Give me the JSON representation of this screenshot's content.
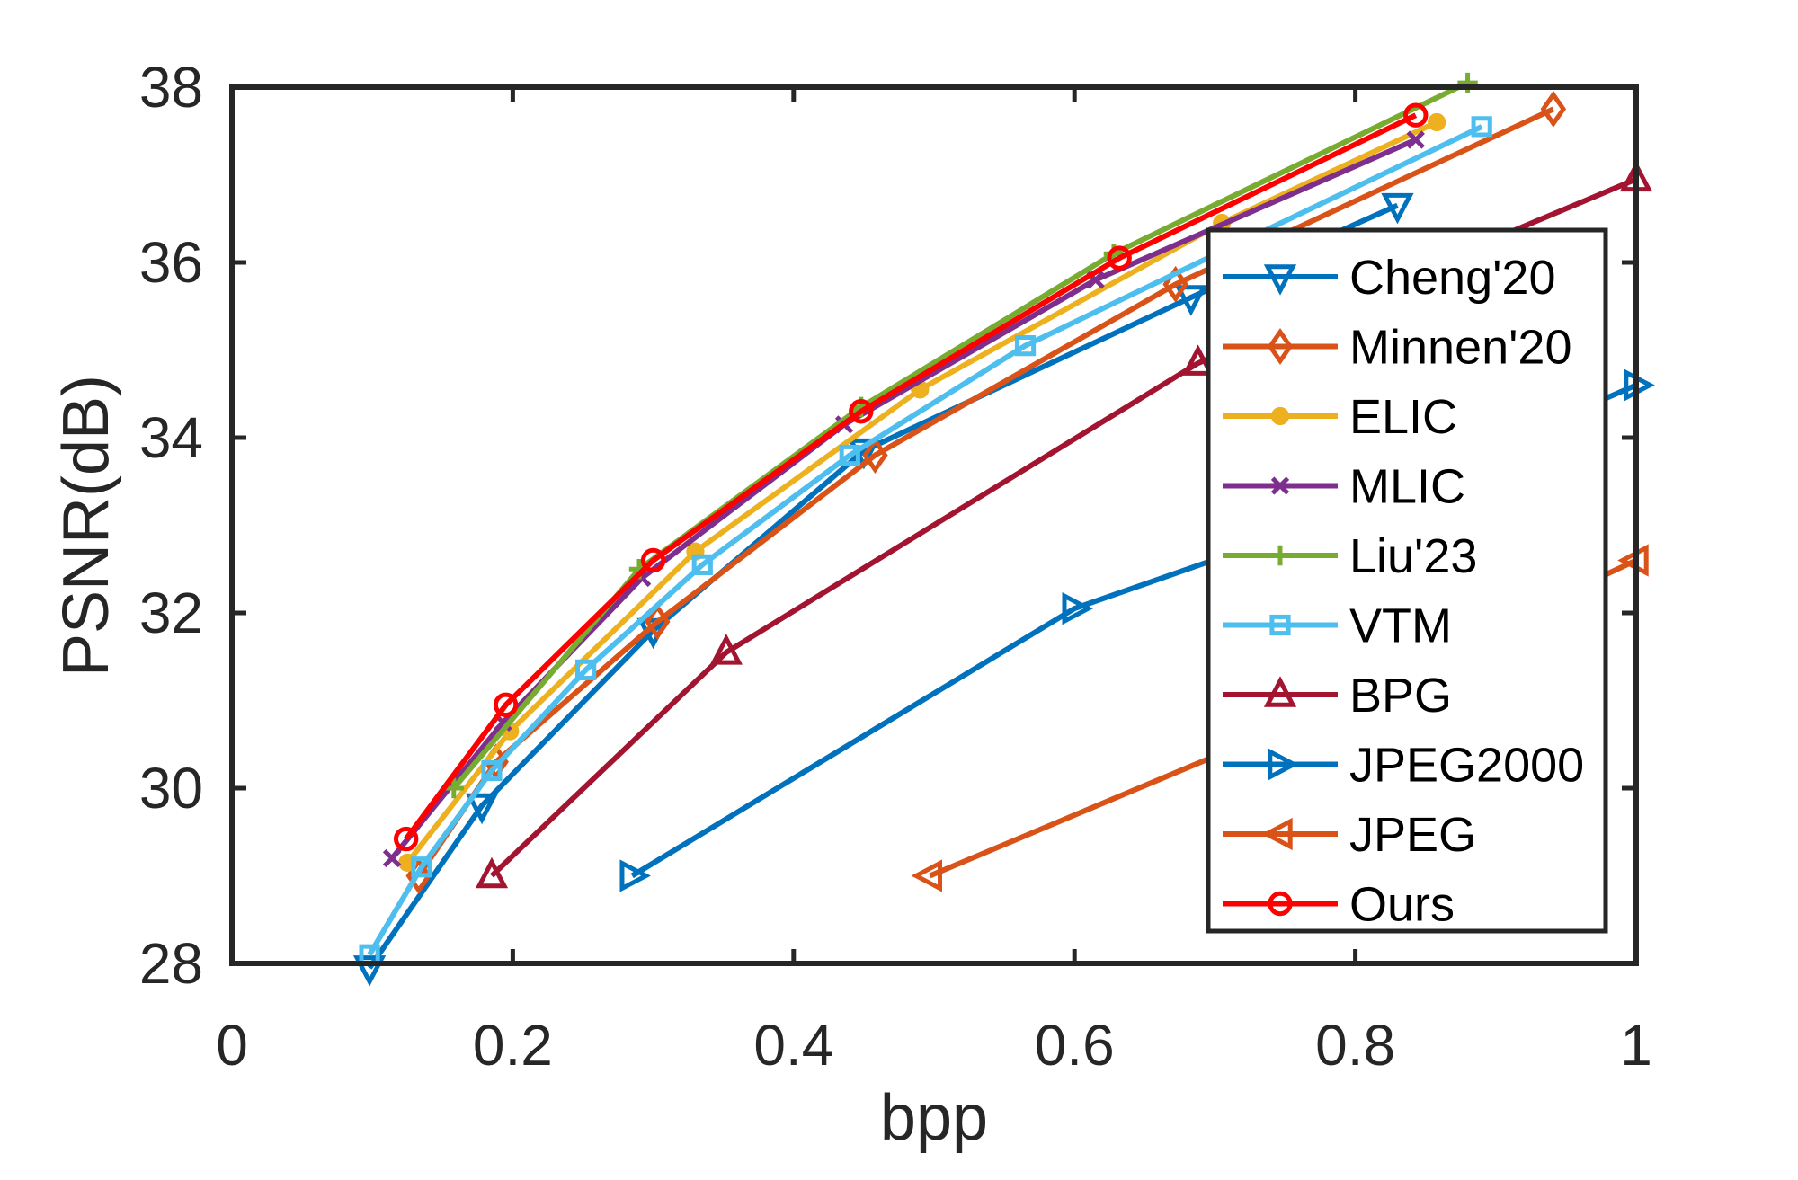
{
  "chart_data": {
    "type": "line",
    "title": "",
    "xlabel": "bpp",
    "ylabel": "PSNR(dB)",
    "xlim": [
      0,
      1
    ],
    "ylim": [
      28,
      38
    ],
    "xticks": [
      0,
      0.2,
      0.4,
      0.6,
      0.8,
      1
    ],
    "xtick_labels": [
      "0",
      "0.2",
      "0.4",
      "0.6",
      "0.8",
      "1"
    ],
    "yticks": [
      28,
      30,
      32,
      34,
      36,
      38
    ],
    "ytick_labels": [
      "28",
      "30",
      "32",
      "34",
      "36",
      "38"
    ],
    "grid": false,
    "legend_position": "right",
    "series": [
      {
        "name": "Cheng'20",
        "color": "#0072BD",
        "marker": "triangle-down",
        "x": [
          0.098,
          0.178,
          0.3,
          0.45,
          0.683,
          0.83
        ],
        "y": [
          27.95,
          29.8,
          31.8,
          33.85,
          35.6,
          36.65
        ]
      },
      {
        "name": "Minnen'20",
        "color": "#D95319",
        "marker": "diamond",
        "x": [
          0.133,
          0.188,
          0.303,
          0.458,
          0.672,
          0.941
        ],
        "y": [
          29.0,
          30.3,
          31.9,
          33.8,
          35.75,
          37.75
        ]
      },
      {
        "name": "ELIC",
        "color": "#EDB120",
        "marker": "circle-filled",
        "x": [
          0.125,
          0.198,
          0.33,
          0.49,
          0.705,
          0.858
        ],
        "y": [
          29.15,
          30.65,
          32.7,
          34.55,
          36.45,
          37.6
        ]
      },
      {
        "name": "MLIC",
        "color": "#7E2F8E",
        "marker": "x",
        "x": [
          0.114,
          0.193,
          0.292,
          0.436,
          0.615,
          0.843
        ],
        "y": [
          29.2,
          30.75,
          32.4,
          34.15,
          35.8,
          37.4
        ]
      },
      {
        "name": "Liu'23",
        "color": "#77AC30",
        "marker": "plus",
        "x": [
          0.158,
          0.29,
          0.448,
          0.628,
          0.88
        ],
        "y": [
          30.0,
          32.5,
          34.35,
          36.1,
          38.05
        ]
      },
      {
        "name": "VTM",
        "color": "#4DBEEE",
        "marker": "square",
        "x": [
          0.098,
          0.135,
          0.185,
          0.252,
          0.335,
          0.44,
          0.565,
          0.89
        ],
        "y": [
          28.1,
          29.1,
          30.2,
          31.35,
          32.55,
          33.8,
          35.05,
          37.55
        ]
      },
      {
        "name": "BPG",
        "color": "#A2142F",
        "marker": "triangle-up",
        "x": [
          0.185,
          0.352,
          0.688,
          1.0
        ],
        "y": [
          29.0,
          31.55,
          34.85,
          36.95
        ]
      },
      {
        "name": "JPEG2000",
        "color": "#0072BD",
        "marker": "triangle-right",
        "x": [
          0.285,
          0.6,
          0.77,
          1.0
        ],
        "y": [
          29.0,
          32.05,
          33.0,
          34.6
        ]
      },
      {
        "name": "JPEG",
        "color": "#D95319",
        "marker": "triangle-left",
        "x": [
          0.497,
          0.72,
          1.0
        ],
        "y": [
          29.0,
          30.5,
          32.6
        ]
      },
      {
        "name": "Ours",
        "color": "#FF0000",
        "marker": "circle",
        "x": [
          0.124,
          0.195,
          0.3,
          0.448,
          0.632,
          0.843
        ],
        "y": [
          29.42,
          30.95,
          32.6,
          34.3,
          36.05,
          37.68
        ]
      }
    ]
  }
}
